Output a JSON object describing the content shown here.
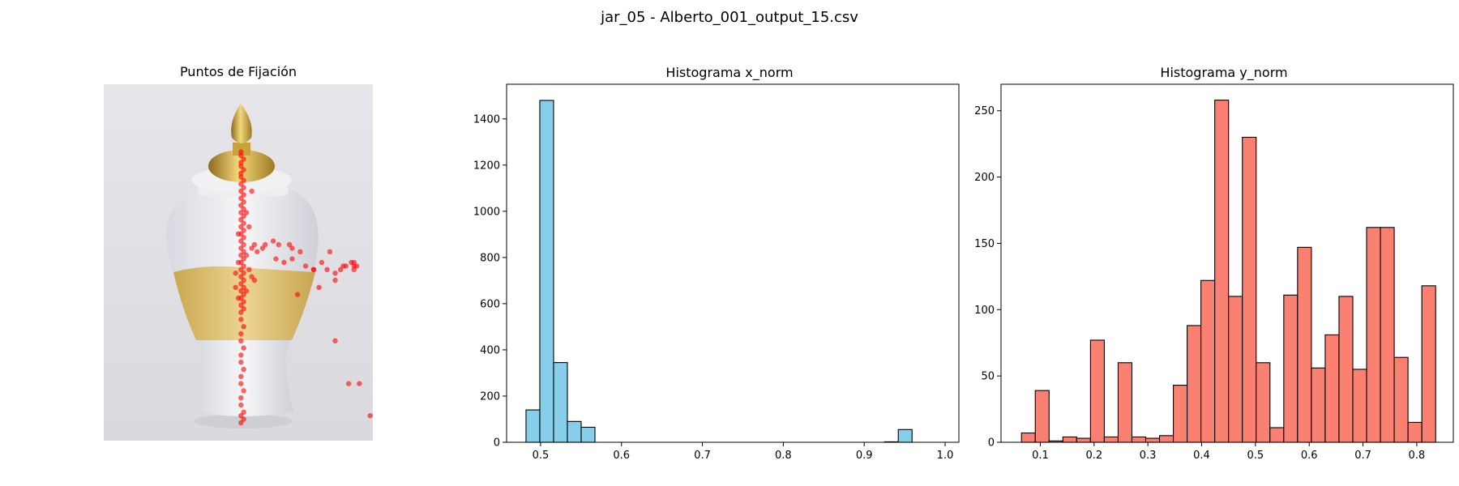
{
  "figure": {
    "suptitle": "jar_05 - Alberto_001_output_15.csv"
  },
  "panels": {
    "image": {
      "title": "Puntos de Fijación"
    },
    "hist_x": {
      "title": "Histograma x_norm"
    },
    "hist_y": {
      "title": "Histograma y_norm"
    }
  },
  "colors": {
    "hist_x_fill": "#87ceeb",
    "hist_y_fill": "#fa8072",
    "edge": "#000000",
    "fixation": "#ff0000"
  },
  "chart_data": [
    {
      "type": "scatter",
      "title": "Puntos de Fijación",
      "background": "jar image (white and gold ceramic jar with gold lid)",
      "axis": "off",
      "x_range": [
        0,
        1
      ],
      "y_range": [
        0,
        1
      ],
      "points": [
        [
          0.51,
          0.19
        ],
        [
          0.51,
          0.2
        ],
        [
          0.52,
          0.21
        ],
        [
          0.51,
          0.22
        ],
        [
          0.51,
          0.23
        ],
        [
          0.52,
          0.24
        ],
        [
          0.51,
          0.25
        ],
        [
          0.51,
          0.26
        ],
        [
          0.52,
          0.27
        ],
        [
          0.51,
          0.28
        ],
        [
          0.52,
          0.29
        ],
        [
          0.51,
          0.3
        ],
        [
          0.52,
          0.31
        ],
        [
          0.51,
          0.32
        ],
        [
          0.52,
          0.33
        ],
        [
          0.51,
          0.34
        ],
        [
          0.52,
          0.35
        ],
        [
          0.51,
          0.36
        ],
        [
          0.52,
          0.37
        ],
        [
          0.51,
          0.38
        ],
        [
          0.52,
          0.39
        ],
        [
          0.51,
          0.4
        ],
        [
          0.52,
          0.41
        ],
        [
          0.51,
          0.42
        ],
        [
          0.52,
          0.43
        ],
        [
          0.51,
          0.44
        ],
        [
          0.52,
          0.45
        ],
        [
          0.51,
          0.46
        ],
        [
          0.52,
          0.47
        ],
        [
          0.51,
          0.48
        ],
        [
          0.52,
          0.49
        ],
        [
          0.51,
          0.5
        ],
        [
          0.52,
          0.51
        ],
        [
          0.51,
          0.52
        ],
        [
          0.52,
          0.53
        ],
        [
          0.51,
          0.54
        ],
        [
          0.52,
          0.55
        ],
        [
          0.51,
          0.56
        ],
        [
          0.52,
          0.57
        ],
        [
          0.51,
          0.58
        ],
        [
          0.52,
          0.59
        ],
        [
          0.51,
          0.6
        ],
        [
          0.52,
          0.61
        ],
        [
          0.51,
          0.62
        ],
        [
          0.52,
          0.63
        ],
        [
          0.51,
          0.64
        ],
        [
          0.51,
          0.66
        ],
        [
          0.52,
          0.68
        ],
        [
          0.51,
          0.7
        ],
        [
          0.51,
          0.72
        ],
        [
          0.52,
          0.74
        ],
        [
          0.51,
          0.76
        ],
        [
          0.51,
          0.78
        ],
        [
          0.52,
          0.8
        ],
        [
          0.51,
          0.82
        ],
        [
          0.51,
          0.84
        ],
        [
          0.52,
          0.86
        ],
        [
          0.51,
          0.88
        ],
        [
          0.51,
          0.9
        ],
        [
          0.52,
          0.92
        ],
        [
          0.51,
          0.93
        ],
        [
          0.52,
          0.94
        ],
        [
          0.51,
          0.95
        ],
        [
          0.5,
          0.5
        ],
        [
          0.53,
          0.48
        ],
        [
          0.54,
          0.52
        ],
        [
          0.49,
          0.53
        ],
        [
          0.55,
          0.54
        ],
        [
          0.5,
          0.42
        ],
        [
          0.54,
          0.4
        ],
        [
          0.53,
          0.36
        ],
        [
          0.55,
          0.46
        ],
        [
          0.56,
          0.55
        ],
        [
          0.57,
          0.47
        ],
        [
          0.55,
          0.3
        ],
        [
          0.49,
          0.57
        ],
        [
          0.5,
          0.6
        ],
        [
          0.53,
          0.58
        ],
        [
          0.56,
          0.45
        ],
        [
          0.59,
          0.46
        ],
        [
          0.6,
          0.45
        ],
        [
          0.63,
          0.44
        ],
        [
          0.65,
          0.45
        ],
        [
          0.69,
          0.45
        ],
        [
          0.7,
          0.46
        ],
        [
          0.73,
          0.47
        ],
        [
          0.64,
          0.49
        ],
        [
          0.67,
          0.5
        ],
        [
          0.7,
          0.49
        ],
        [
          0.75,
          0.51
        ],
        [
          0.78,
          0.52
        ],
        [
          0.81,
          0.5
        ],
        [
          0.83,
          0.52
        ],
        [
          0.86,
          0.53
        ],
        [
          0.88,
          0.52
        ],
        [
          0.89,
          0.51
        ],
        [
          0.9,
          0.51
        ],
        [
          0.92,
          0.5
        ],
        [
          0.93,
          0.51
        ],
        [
          0.93,
          0.52
        ],
        [
          0.94,
          0.51
        ],
        [
          0.93,
          0.5
        ],
        [
          0.84,
          0.47
        ],
        [
          0.72,
          0.59
        ],
        [
          0.8,
          0.57
        ],
        [
          0.78,
          0.52
        ],
        [
          0.86,
          0.55
        ],
        [
          0.86,
          0.72
        ],
        [
          0.91,
          0.84
        ],
        [
          0.95,
          0.84
        ],
        [
          0.99,
          0.93
        ]
      ]
    },
    {
      "type": "bar",
      "title": "Histograma x_norm",
      "bin_start": 0.482,
      "bin_width": 0.01704,
      "values": [
        140,
        1480,
        345,
        90,
        65,
        0,
        0,
        0,
        0,
        0,
        0,
        0,
        0,
        0,
        0,
        0,
        0,
        0,
        0,
        0,
        0,
        0,
        0,
        0,
        0,
        0,
        2,
        55,
        0,
        0
      ],
      "xlim": [
        0.458,
        1.017
      ],
      "ylim": [
        0,
        1550
      ],
      "xticks": [
        0.5,
        0.6,
        0.7,
        0.8,
        0.9,
        1.0
      ],
      "xtick_labels": [
        "0.5",
        "0.6",
        "0.7",
        "0.8",
        "0.9",
        "1.0"
      ],
      "yticks": [
        0,
        200,
        400,
        600,
        800,
        1000,
        1200,
        1400
      ],
      "ytick_labels": [
        "0",
        "200",
        "400",
        "600",
        "800",
        "1000",
        "1200",
        "1400"
      ]
    },
    {
      "type": "bar",
      "title": "Histograma y_norm",
      "bin_start": 0.065,
      "bin_width": 0.02567,
      "values": [
        7,
        39,
        1,
        4,
        3,
        77,
        4,
        60,
        4,
        3,
        5,
        43,
        88,
        122,
        258,
        110,
        230,
        60,
        11,
        111,
        147,
        56,
        81,
        110,
        55,
        162,
        162,
        64,
        15,
        118
      ],
      "xlim": [
        0.027,
        0.868
      ],
      "ylim": [
        0,
        270
      ],
      "xticks": [
        0.1,
        0.2,
        0.3,
        0.4,
        0.5,
        0.6,
        0.7,
        0.8
      ],
      "xtick_labels": [
        "0.1",
        "0.2",
        "0.3",
        "0.4",
        "0.5",
        "0.6",
        "0.7",
        "0.8"
      ],
      "yticks": [
        0,
        50,
        100,
        150,
        200,
        250
      ],
      "ytick_labels": [
        "0",
        "50",
        "100",
        "150",
        "200",
        "250"
      ]
    }
  ]
}
